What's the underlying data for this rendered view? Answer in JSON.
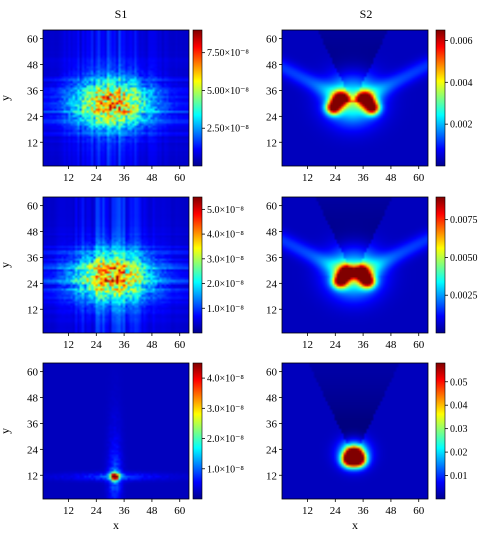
{
  "column_titles": [
    "S1",
    "S2"
  ],
  "chart_data": [
    {
      "type": "heatmap",
      "column": "S1",
      "row": 1,
      "x_ticks": [
        12,
        24,
        36,
        48,
        60
      ],
      "y_ticks": [
        12,
        24,
        36,
        48,
        60
      ],
      "xlim": [
        1,
        64
      ],
      "ylim": [
        1,
        64
      ],
      "ylabel": "y",
      "xlabel": "",
      "colorbar": {
        "min": 0,
        "max": 9e-08,
        "ticks": [
          2.5e-08,
          5e-08,
          7.5e-08
        ],
        "tick_labels": [
          "2.50×10⁻⁸",
          "5.00×10⁻⁸",
          "7.50×10⁻⁸"
        ]
      },
      "pattern": "diffuse grid centered near (31, 30)"
    },
    {
      "type": "heatmap",
      "column": "S2",
      "row": 1,
      "x_ticks": [
        12,
        24,
        36,
        48,
        60
      ],
      "y_ticks": [
        12,
        24,
        36,
        48,
        60
      ],
      "xlim": [
        1,
        64
      ],
      "ylim": [
        1,
        64
      ],
      "ylabel": "",
      "xlabel": "",
      "colorbar": {
        "min": 0,
        "max": 0.0065,
        "ticks": [
          0.002,
          0.004,
          0.006
        ],
        "tick_labels": [
          "0.002",
          "0.004",
          "0.006"
        ]
      },
      "peaks": [
        [
          26,
          32
        ],
        [
          37,
          32
        ],
        [
          23,
          28
        ],
        [
          40,
          28
        ]
      ]
    },
    {
      "type": "heatmap",
      "column": "S1",
      "row": 2,
      "x_ticks": [
        12,
        24,
        36,
        48,
        60
      ],
      "y_ticks": [
        12,
        24,
        36,
        48,
        60
      ],
      "xlim": [
        1,
        64
      ],
      "ylim": [
        1,
        64
      ],
      "ylabel": "y",
      "xlabel": "",
      "colorbar": {
        "min": 0,
        "max": 5.5e-08,
        "ticks": [
          1e-08,
          2e-08,
          3e-08,
          4e-08,
          5e-08
        ],
        "tick_labels": [
          "1.0×10⁻⁸",
          "2.0×10⁻⁸",
          "3.0×10⁻⁸",
          "4.0×10⁻⁸",
          "5.0×10⁻⁸"
        ]
      },
      "pattern": "diffuse grid centered near (31, 28)"
    },
    {
      "type": "heatmap",
      "column": "S2",
      "row": 2,
      "x_ticks": [
        12,
        24,
        36,
        48,
        60
      ],
      "y_ticks": [
        12,
        24,
        36,
        48,
        60
      ],
      "xlim": [
        1,
        64
      ],
      "ylim": [
        1,
        64
      ],
      "ylabel": "",
      "xlabel": "",
      "colorbar": {
        "min": 0,
        "max": 0.009,
        "ticks": [
          0.0025,
          0.005,
          0.0075
        ],
        "tick_labels": [
          "0.0025",
          "0.0050",
          "0.0075"
        ]
      },
      "peaks": [
        [
          29,
          29
        ],
        [
          35,
          29
        ],
        [
          26,
          25
        ],
        [
          38,
          25
        ]
      ]
    },
    {
      "type": "heatmap",
      "column": "S1",
      "row": 3,
      "x_ticks": [
        12,
        24,
        36,
        48,
        60
      ],
      "y_ticks": [
        12,
        24,
        36,
        48,
        60
      ],
      "xlim": [
        1,
        64
      ],
      "ylim": [
        1,
        64
      ],
      "ylabel": "y",
      "xlabel": "x",
      "colorbar": {
        "min": 0,
        "max": 4.5e-08,
        "ticks": [
          1e-08,
          2e-08,
          3e-08,
          4e-08
        ],
        "tick_labels": [
          "1.0×10⁻⁸",
          "2.0×10⁻⁸",
          "3.0×10⁻⁸",
          "4.0×10⁻⁸"
        ]
      },
      "pattern": "sharp spot near (32, 11)"
    },
    {
      "type": "heatmap",
      "column": "S2",
      "row": 3,
      "x_ticks": [
        12,
        24,
        36,
        48,
        60
      ],
      "y_ticks": [
        12,
        24,
        36,
        48,
        60
      ],
      "xlim": [
        1,
        64
      ],
      "ylim": [
        1,
        64
      ],
      "ylabel": "",
      "xlabel": "x",
      "colorbar": {
        "min": 0,
        "max": 0.058,
        "ticks": [
          0.01,
          0.02,
          0.03,
          0.04,
          0.05
        ],
        "tick_labels": [
          "0.01",
          "0.02",
          "0.03",
          "0.04",
          "0.05"
        ]
      },
      "peaks": [
        [
          32,
          22
        ],
        [
          30,
          19
        ],
        [
          34,
          19
        ]
      ]
    }
  ]
}
